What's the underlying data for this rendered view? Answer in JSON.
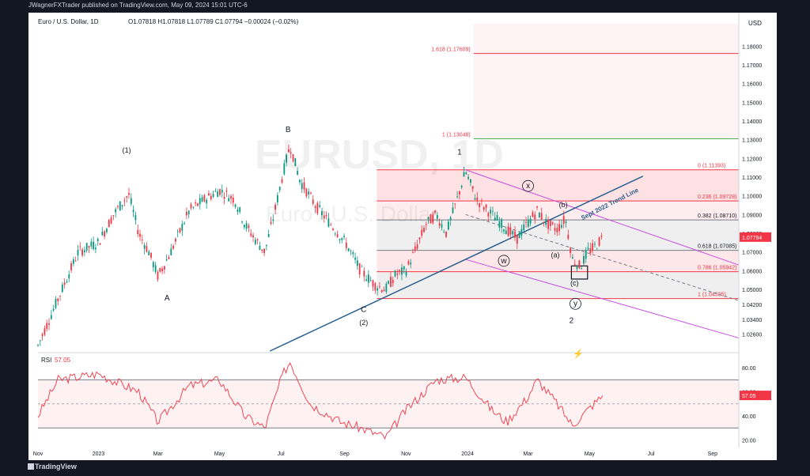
{
  "topbar": {
    "text": "JWagnerFXTrader published on TradingView.com, May 09, 2024 15:01 UTC-6"
  },
  "brand": {
    "text": "TradingView"
  },
  "header": {
    "symbol": "Euro / U.S. Dollar, 1D",
    "ohlc": "O1.07818  H1.07818  L1.07789  C1.07794  −0.00024 (−0.02%)"
  },
  "watermark": {
    "symbol": "EURUSD, 1D",
    "name": "Euro / U.S. Dollar"
  },
  "currency": "USD",
  "colors": {
    "up": "#089981",
    "down": "#f23645",
    "fib": "#f23645",
    "trend": "#2a5f8f",
    "channel": "#c74fe0",
    "rsi": "#f23645"
  },
  "chart_data": [
    {
      "type": "candlestick",
      "title": "Euro / U.S. Dollar, 1D",
      "ylim": [
        1.017,
        1.192
      ],
      "y_ticks": [
        "1.02600",
        "1.03400",
        "1.04200",
        "1.05000",
        "1.06000",
        "1.07000",
        "1.08000",
        "1.09000",
        "1.10000",
        "1.11000",
        "1.12000",
        "1.13000",
        "1.14000",
        "1.15000",
        "1.16000",
        "1.17000",
        "1.18000"
      ],
      "x_ticks": [
        "Nov",
        "2023",
        "Mar",
        "May",
        "Jul",
        "Sep",
        "Nov",
        "2024",
        "Mar",
        "May",
        "Jul",
        "Sep"
      ],
      "x_tick_times": [
        0,
        60,
        119,
        180,
        241,
        304,
        365,
        426,
        486,
        547,
        608,
        669
      ],
      "xlim": [
        0,
        695
      ],
      "last_price": "1.07794",
      "series": [
        {
          "t": 0,
          "p": 1.02
        },
        {
          "t": 20,
          "p": 1.045
        },
        {
          "t": 40,
          "p": 1.07
        },
        {
          "t": 60,
          "p": 1.075
        },
        {
          "t": 75,
          "p": 1.09
        },
        {
          "t": 90,
          "p": 1.101
        },
        {
          "t": 100,
          "p": 1.08
        },
        {
          "t": 110,
          "p": 1.07
        },
        {
          "t": 119,
          "p": 1.057
        },
        {
          "t": 130,
          "p": 1.068
        },
        {
          "t": 150,
          "p": 1.092
        },
        {
          "t": 165,
          "p": 1.098
        },
        {
          "t": 180,
          "p": 1.103
        },
        {
          "t": 195,
          "p": 1.098
        },
        {
          "t": 205,
          "p": 1.085
        },
        {
          "t": 215,
          "p": 1.077
        },
        {
          "t": 225,
          "p": 1.07
        },
        {
          "t": 235,
          "p": 1.092
        },
        {
          "t": 243,
          "p": 1.112
        },
        {
          "t": 250,
          "p": 1.127
        },
        {
          "t": 260,
          "p": 1.108
        },
        {
          "t": 275,
          "p": 1.095
        },
        {
          "t": 290,
          "p": 1.085
        },
        {
          "t": 305,
          "p": 1.075
        },
        {
          "t": 320,
          "p": 1.06
        },
        {
          "t": 335,
          "p": 1.052
        },
        {
          "t": 345,
          "p": 1.05
        },
        {
          "t": 355,
          "p": 1.058
        },
        {
          "t": 365,
          "p": 1.06
        },
        {
          "t": 375,
          "p": 1.072
        },
        {
          "t": 385,
          "p": 1.085
        },
        {
          "t": 395,
          "p": 1.09
        },
        {
          "t": 405,
          "p": 1.08
        },
        {
          "t": 415,
          "p": 1.097
        },
        {
          "t": 424,
          "p": 1.113
        },
        {
          "t": 435,
          "p": 1.098
        },
        {
          "t": 450,
          "p": 1.09
        },
        {
          "t": 465,
          "p": 1.082
        },
        {
          "t": 475,
          "p": 1.077
        },
        {
          "t": 485,
          "p": 1.085
        },
        {
          "t": 495,
          "p": 1.092
        },
        {
          "t": 505,
          "p": 1.085
        },
        {
          "t": 515,
          "p": 1.082
        },
        {
          "t": 523,
          "p": 1.088
        },
        {
          "t": 530,
          "p": 1.066
        },
        {
          "t": 538,
          "p": 1.062
        },
        {
          "t": 545,
          "p": 1.07
        },
        {
          "t": 553,
          "p": 1.073
        },
        {
          "t": 560,
          "p": 1.078
        }
      ],
      "fib_levels": [
        {
          "label": "1.618 (1.17609)",
          "value": 1.17609
        },
        {
          "label": "1 (1.13048)",
          "value": 1.13048
        },
        {
          "label": "0 (1.11393)",
          "value": 1.11393
        },
        {
          "label": "0.236 (1.09728)",
          "value": 1.09728
        },
        {
          "label": "0.382 (1.08710)",
          "value": 1.0871
        },
        {
          "label": "0.618 (1.07085)",
          "value": 1.07085
        },
        {
          "label": "0.786 (1.05942)",
          "value": 1.05942
        },
        {
          "label": "1 (1.04505)",
          "value": 1.04505
        }
      ],
      "wave_labels": [
        {
          "text": "(1)",
          "t": 88,
          "p": 1.123
        },
        {
          "text": "A",
          "t": 128,
          "p": 1.044
        },
        {
          "text": "B",
          "t": 248,
          "p": 1.134
        },
        {
          "text": "C",
          "t": 323,
          "p": 1.038
        },
        {
          "text": "(2)",
          "t": 323,
          "p": 1.031
        },
        {
          "text": "1",
          "t": 418,
          "p": 1.122
        },
        {
          "text": "x",
          "t": 486,
          "p": 1.104
        },
        {
          "text": "(b)",
          "t": 521,
          "p": 1.094
        },
        {
          "text": "w",
          "t": 462,
          "p": 1.064
        },
        {
          "text": "(a)",
          "t": 513,
          "p": 1.067
        },
        {
          "text": "(c)",
          "t": 532,
          "p": 1.052
        },
        {
          "text": "y",
          "t": 533,
          "p": 1.041
        },
        {
          "text": "2",
          "t": 529,
          "p": 1.032
        }
      ],
      "trend_label": "Sept 2022 Trend Line"
    },
    {
      "type": "line",
      "title": "RSI",
      "current": "57.05",
      "ylim": [
        15,
        90
      ],
      "y_ticks": [
        "20.00",
        "40.00",
        "60.00",
        "80.00"
      ],
      "bands": [
        30,
        70
      ],
      "values_keypoints": [
        {
          "t": 0,
          "v": 40
        },
        {
          "t": 20,
          "v": 70
        },
        {
          "t": 60,
          "v": 75
        },
        {
          "t": 100,
          "v": 60
        },
        {
          "t": 119,
          "v": 35
        },
        {
          "t": 150,
          "v": 65
        },
        {
          "t": 180,
          "v": 70
        },
        {
          "t": 205,
          "v": 40
        },
        {
          "t": 225,
          "v": 30
        },
        {
          "t": 243,
          "v": 75
        },
        {
          "t": 250,
          "v": 85
        },
        {
          "t": 270,
          "v": 50
        },
        {
          "t": 300,
          "v": 35
        },
        {
          "t": 320,
          "v": 30
        },
        {
          "t": 345,
          "v": 22
        },
        {
          "t": 365,
          "v": 45
        },
        {
          "t": 395,
          "v": 70
        },
        {
          "t": 424,
          "v": 72
        },
        {
          "t": 450,
          "v": 45
        },
        {
          "t": 465,
          "v": 35
        },
        {
          "t": 485,
          "v": 55
        },
        {
          "t": 495,
          "v": 70
        },
        {
          "t": 515,
          "v": 50
        },
        {
          "t": 530,
          "v": 32
        },
        {
          "t": 545,
          "v": 45
        },
        {
          "t": 560,
          "v": 57
        }
      ]
    }
  ]
}
